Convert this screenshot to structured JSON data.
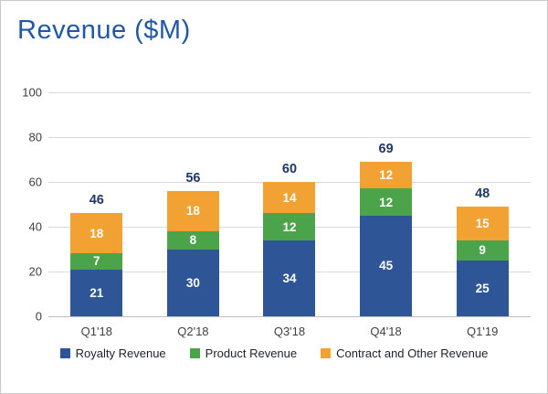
{
  "title": "Revenue ($M)",
  "chart_data": {
    "type": "bar",
    "stacked": true,
    "title": "Revenue ($M)",
    "categories": [
      "Q1'18",
      "Q2'18",
      "Q3'18",
      "Q4'18",
      "Q1'19"
    ],
    "series": [
      {
        "name": "Royalty Revenue",
        "color": "#2e5596",
        "values": [
          21,
          30,
          34,
          45,
          25
        ]
      },
      {
        "name": "Product Revenue",
        "color": "#4ca44a",
        "values": [
          7,
          8,
          12,
          12,
          9
        ]
      },
      {
        "name": "Contract and Other Revenue",
        "color": "#f2a133",
        "values": [
          18,
          18,
          14,
          12,
          15
        ]
      }
    ],
    "totals": [
      46,
      56,
      60,
      69,
      48
    ],
    "xlabel": "",
    "ylabel": "",
    "ylim": [
      0,
      100
    ],
    "yticks": [
      0,
      20,
      40,
      60,
      80,
      100
    ],
    "grid": true,
    "legend_position": "bottom",
    "colors": {
      "title": "#2257a4",
      "total_label": "#203864",
      "tick_label": "#3f3f3f",
      "gridline": "#d9d9d9"
    }
  }
}
